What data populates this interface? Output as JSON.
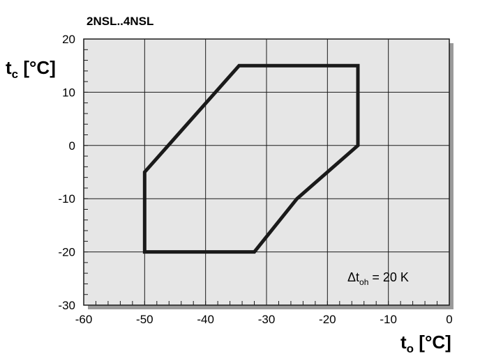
{
  "chart_data": {
    "type": "line",
    "title": "2NSL..4NSL",
    "xlabel": {
      "main": "t",
      "sub": "o",
      "unit": " [°C]"
    },
    "ylabel": {
      "main": "t",
      "sub": "c",
      "unit": " [°C]"
    },
    "xlim": [
      -60,
      0
    ],
    "ylim": [
      -30,
      20
    ],
    "x_ticks": [
      -60,
      -50,
      -40,
      -30,
      -20,
      -10,
      0
    ],
    "y_ticks": [
      -30,
      -20,
      -10,
      0,
      10,
      20
    ],
    "grid": true,
    "series": [
      {
        "closed": true,
        "points": [
          [
            -50,
            -5
          ],
          [
            -34.5,
            15
          ],
          [
            -15,
            15
          ],
          [
            -15,
            0
          ],
          [
            -25,
            -10
          ],
          [
            -32,
            -20
          ],
          [
            -50,
            -20
          ]
        ]
      }
    ],
    "annotation": {
      "prefix": "Δt",
      "sub": "oh",
      "suffix": " = 20 K"
    },
    "colors": {
      "plot_bg": "#e6e6e6",
      "line": "#1a1a1a",
      "grid": "#1a1a1a",
      "shadow": "#9a9a9a"
    }
  }
}
